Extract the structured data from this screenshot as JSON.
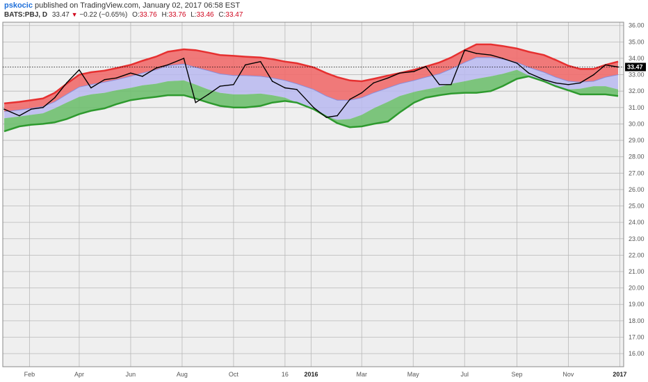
{
  "header": {
    "author": "pskocic",
    "published_text": "published on TradingView.com, January 02, 2017 06:58 EST",
    "symbol": "BATS:PBJ, D",
    "last": "33.47",
    "change": "−0.22 (−0.65%)",
    "open_label": "O:",
    "open_value": "33.76",
    "high_label": "H:",
    "high_value": "33.76",
    "low_label": "L:",
    "low_value": "33.46",
    "close_label": "C:",
    "close_value": "33.47"
  },
  "colors": {
    "upper_band": "#f06b6b",
    "upper_band_line": "#e63030",
    "middle_band": "#b8b8f0",
    "lower_band": "#6fbf6f",
    "lower_band_line": "#2e9a2e",
    "price_line": "#000000",
    "grid": "#b8b8b8",
    "background": "#efefef"
  },
  "chart_data": {
    "type": "line",
    "title": "",
    "x_ticks": [
      "Feb",
      "Apr",
      "Jun",
      "Aug",
      "Oct",
      "16",
      "2016",
      "Mar",
      "May",
      "Jul",
      "Sep",
      "Nov",
      "2017"
    ],
    "x_ticks_bold": [
      "2016",
      "2017"
    ],
    "y_ticks": [
      "16.00",
      "17.00",
      "18.00",
      "19.00",
      "20.00",
      "21.00",
      "22.00",
      "23.00",
      "24.00",
      "25.00",
      "26.00",
      "27.00",
      "28.00",
      "29.00",
      "30.00",
      "31.00",
      "32.00",
      "33.00",
      "34.00",
      "35.00",
      "36.00"
    ],
    "ylim": [
      15.2,
      36.2
    ],
    "last_price_label": "33.47",
    "last_price": 33.47,
    "x": [
      "2015-01-02",
      "2015-01-20",
      "2015-02-03",
      "2015-02-17",
      "2015-03-03",
      "2015-03-17",
      "2015-04-01",
      "2015-04-15",
      "2015-05-01",
      "2015-05-15",
      "2015-06-01",
      "2015-06-15",
      "2015-07-01",
      "2015-07-15",
      "2015-08-03",
      "2015-08-17",
      "2015-09-01",
      "2015-09-15",
      "2015-10-01",
      "2015-10-15",
      "2015-11-02",
      "2015-11-16",
      "2015-12-01",
      "2015-12-15",
      "2016-01-04",
      "2016-01-19",
      "2016-02-01",
      "2016-02-16",
      "2016-03-01",
      "2016-03-15",
      "2016-04-01",
      "2016-04-15",
      "2016-05-02",
      "2016-05-16",
      "2016-06-01",
      "2016-06-15",
      "2016-07-01",
      "2016-07-15",
      "2016-08-01",
      "2016-08-15",
      "2016-09-01",
      "2016-09-15",
      "2016-10-03",
      "2016-10-17",
      "2016-11-01",
      "2016-11-15",
      "2016-12-01",
      "2016-12-15",
      "2016-12-30"
    ],
    "series": [
      {
        "role": "price",
        "values": [
          30.9,
          30.5,
          30.9,
          31.0,
          31.6,
          32.5,
          33.3,
          32.2,
          32.7,
          32.8,
          33.1,
          32.9,
          33.4,
          33.6,
          34.0,
          31.3,
          31.8,
          32.3,
          32.4,
          33.6,
          33.8,
          32.6,
          32.2,
          32.1,
          31.0,
          30.4,
          30.5,
          31.5,
          31.9,
          32.5,
          32.8,
          33.1,
          33.2,
          33.5,
          32.4,
          32.4,
          34.5,
          34.3,
          34.2,
          34.0,
          33.7,
          33.1,
          32.7,
          32.5,
          32.4,
          32.5,
          33.0,
          33.6,
          33.47
        ]
      },
      {
        "role": "upper_band",
        "values": [
          31.25,
          31.35,
          31.45,
          31.55,
          31.9,
          32.45,
          33.0,
          33.15,
          33.25,
          33.4,
          33.6,
          33.85,
          34.1,
          34.4,
          34.55,
          34.5,
          34.35,
          34.2,
          34.15,
          34.1,
          34.05,
          33.95,
          33.8,
          33.7,
          33.45,
          33.1,
          32.85,
          32.65,
          32.6,
          32.75,
          32.95,
          33.1,
          33.3,
          33.5,
          33.75,
          34.05,
          34.5,
          34.85,
          34.85,
          34.75,
          34.6,
          34.4,
          34.2,
          33.9,
          33.55,
          33.35,
          33.35,
          33.6,
          33.8
        ]
      },
      {
        "role": "middle_line",
        "values": [
          30.75,
          30.85,
          30.95,
          31.05,
          31.35,
          31.8,
          32.25,
          32.4,
          32.55,
          32.7,
          32.9,
          33.1,
          33.3,
          33.55,
          33.65,
          33.45,
          33.25,
          33.05,
          32.95,
          32.95,
          32.9,
          32.8,
          32.65,
          32.45,
          32.1,
          31.7,
          31.45,
          31.45,
          31.6,
          31.9,
          32.2,
          32.45,
          32.65,
          32.85,
          33.05,
          33.35,
          33.75,
          34.05,
          34.05,
          33.95,
          33.75,
          33.45,
          33.15,
          32.85,
          32.6,
          32.55,
          32.6,
          32.85,
          33.0
        ]
      },
      {
        "role": "inner_lower",
        "values": [
          30.35,
          30.45,
          30.55,
          30.65,
          30.95,
          31.3,
          31.65,
          31.8,
          31.9,
          32.05,
          32.2,
          32.35,
          32.45,
          32.6,
          32.65,
          32.4,
          32.1,
          31.9,
          31.8,
          31.8,
          31.85,
          31.75,
          31.6,
          31.3,
          30.85,
          30.45,
          30.25,
          30.3,
          30.55,
          30.95,
          31.35,
          31.7,
          31.95,
          32.1,
          32.25,
          32.45,
          32.6,
          32.75,
          32.9,
          33.05,
          33.3,
          32.95,
          32.55,
          32.25,
          32.1,
          32.15,
          32.3,
          32.3,
          32.1
        ]
      },
      {
        "role": "lower_band",
        "values": [
          29.55,
          29.85,
          29.95,
          30.0,
          30.1,
          30.3,
          30.6,
          30.8,
          30.95,
          31.2,
          31.45,
          31.55,
          31.65,
          31.75,
          31.75,
          31.55,
          31.3,
          31.1,
          31.0,
          31.0,
          31.1,
          31.3,
          31.4,
          31.3,
          30.9,
          30.45,
          30.05,
          29.8,
          29.85,
          30.0,
          30.15,
          30.7,
          31.3,
          31.6,
          31.75,
          31.85,
          31.9,
          31.9,
          32.0,
          32.3,
          32.75,
          32.9,
          32.6,
          32.3,
          32.05,
          31.8,
          31.8,
          31.8,
          31.7
        ]
      }
    ]
  }
}
